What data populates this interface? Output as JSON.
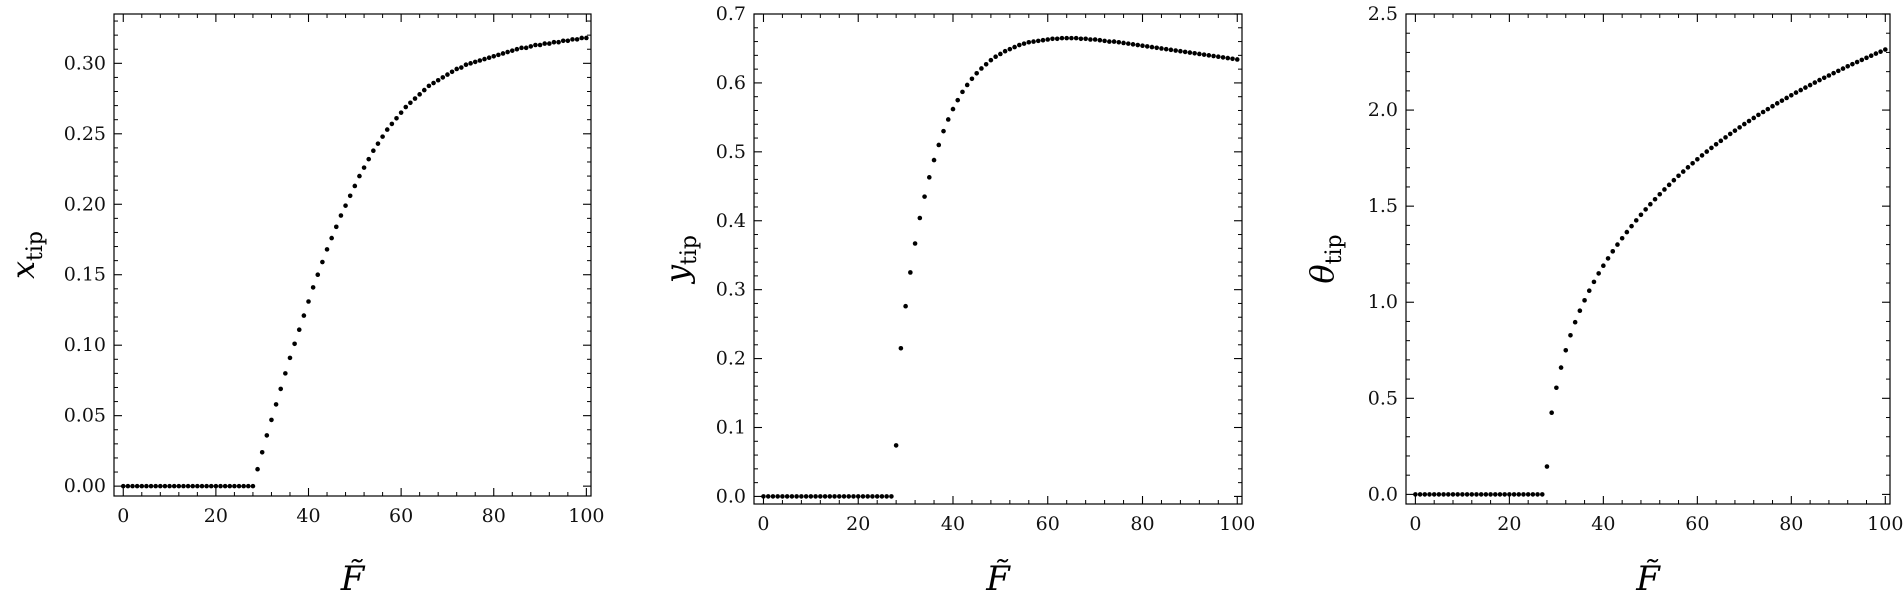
{
  "chart_data": [
    {
      "type": "scatter",
      "xlabel": "F̃",
      "ylabel": "x",
      "ylabel_sub": "tip",
      "xlim": [
        -2,
        101
      ],
      "ylim": [
        -0.007,
        0.335
      ],
      "xticks": [
        0,
        20,
        40,
        60,
        80,
        100
      ],
      "xtick_labels": [
        "0",
        "20",
        "40",
        "60",
        "80",
        "100"
      ],
      "yticks": [
        0,
        0.05,
        0.1,
        0.15,
        0.2,
        0.25,
        0.3
      ],
      "ytick_labels": [
        "0.00",
        "0.05",
        "0.10",
        "0.15",
        "0.20",
        "0.25",
        "0.30"
      ],
      "x": [
        0,
        1,
        2,
        3,
        4,
        5,
        6,
        7,
        8,
        9,
        10,
        11,
        12,
        13,
        14,
        15,
        16,
        17,
        18,
        19,
        20,
        21,
        22,
        23,
        24,
        25,
        26,
        27,
        28,
        29,
        30,
        31,
        32,
        33,
        34,
        35,
        36,
        37,
        38,
        39,
        40,
        41,
        42,
        43,
        44,
        45,
        46,
        47,
        48,
        49,
        50,
        51,
        52,
        53,
        54,
        55,
        56,
        57,
        58,
        59,
        60,
        61,
        62,
        63,
        64,
        65,
        66,
        67,
        68,
        69,
        70,
        71,
        72,
        73,
        74,
        75,
        76,
        77,
        78,
        79,
        80,
        81,
        82,
        83,
        84,
        85,
        86,
        87,
        88,
        89,
        90,
        91,
        92,
        93,
        94,
        95,
        96,
        97,
        98,
        99,
        100
      ],
      "y": [
        0,
        0,
        0,
        0,
        0,
        0,
        0,
        0,
        0,
        0,
        0,
        0,
        0,
        0,
        0,
        0,
        0,
        0,
        0,
        0,
        0,
        0,
        0,
        0,
        0,
        0,
        0,
        0,
        0,
        0.012,
        0.024,
        0.036,
        0.047,
        0.058,
        0.069,
        0.08,
        0.091,
        0.101,
        0.111,
        0.121,
        0.131,
        0.141,
        0.15,
        0.159,
        0.168,
        0.176,
        0.184,
        0.192,
        0.199,
        0.206,
        0.213,
        0.22,
        0.226,
        0.232,
        0.238,
        0.243,
        0.248,
        0.253,
        0.257,
        0.261,
        0.265,
        0.269,
        0.272,
        0.275,
        0.278,
        0.281,
        0.284,
        0.286,
        0.288,
        0.29,
        0.292,
        0.294,
        0.296,
        0.297,
        0.299,
        0.3,
        0.301,
        0.302,
        0.303,
        0.304,
        0.305,
        0.306,
        0.307,
        0.308,
        0.309,
        0.31,
        0.311,
        0.311,
        0.312,
        0.313,
        0.313,
        0.314,
        0.314,
        0.315,
        0.315,
        0.316,
        0.316,
        0.317,
        0.317,
        0.318,
        0.318
      ]
    },
    {
      "type": "scatter",
      "xlabel": "F̃",
      "ylabel": "y",
      "ylabel_sub": "tip",
      "xlim": [
        -2,
        101
      ],
      "ylim": [
        -0.011,
        0.7
      ],
      "xticks": [
        0,
        20,
        40,
        60,
        80,
        100
      ],
      "xtick_labels": [
        "0",
        "20",
        "40",
        "60",
        "80",
        "100"
      ],
      "yticks": [
        0,
        0.1,
        0.2,
        0.3,
        0.4,
        0.5,
        0.6,
        0.7
      ],
      "ytick_labels": [
        "0.0",
        "0.1",
        "0.2",
        "0.3",
        "0.4",
        "0.5",
        "0.6",
        "0.7"
      ],
      "x": [
        0,
        1,
        2,
        3,
        4,
        5,
        6,
        7,
        8,
        9,
        10,
        11,
        12,
        13,
        14,
        15,
        16,
        17,
        18,
        19,
        20,
        21,
        22,
        23,
        24,
        25,
        26,
        27,
        28,
        29,
        30,
        31,
        32,
        33,
        34,
        35,
        36,
        37,
        38,
        39,
        40,
        41,
        42,
        43,
        44,
        45,
        46,
        47,
        48,
        49,
        50,
        51,
        52,
        53,
        54,
        55,
        56,
        57,
        58,
        59,
        60,
        61,
        62,
        63,
        64,
        65,
        66,
        67,
        68,
        69,
        70,
        71,
        72,
        73,
        74,
        75,
        76,
        77,
        78,
        79,
        80,
        81,
        82,
        83,
        84,
        85,
        86,
        87,
        88,
        89,
        90,
        91,
        92,
        93,
        94,
        95,
        96,
        97,
        98,
        99,
        100
      ],
      "y": [
        0,
        0,
        0,
        0,
        0,
        0,
        0,
        0,
        0,
        0,
        0,
        0,
        0,
        0,
        0,
        0,
        0,
        0,
        0,
        0,
        0,
        0,
        0,
        0,
        0,
        0,
        0,
        0,
        0.074,
        0.215,
        0.276,
        0.325,
        0.367,
        0.404,
        0.435,
        0.463,
        0.488,
        0.51,
        0.53,
        0.547,
        0.562,
        0.575,
        0.587,
        0.597,
        0.606,
        0.614,
        0.621,
        0.627,
        0.633,
        0.638,
        0.642,
        0.646,
        0.649,
        0.652,
        0.655,
        0.657,
        0.659,
        0.66,
        0.661,
        0.662,
        0.663,
        0.664,
        0.664,
        0.665,
        0.665,
        0.665,
        0.665,
        0.664,
        0.664,
        0.663,
        0.663,
        0.662,
        0.661,
        0.66,
        0.66,
        0.659,
        0.658,
        0.657,
        0.656,
        0.655,
        0.654,
        0.653,
        0.652,
        0.651,
        0.65,
        0.649,
        0.648,
        0.647,
        0.646,
        0.645,
        0.644,
        0.643,
        0.642,
        0.641,
        0.64,
        0.639,
        0.638,
        0.637,
        0.636,
        0.635,
        0.634
      ]
    },
    {
      "type": "scatter",
      "xlabel": "F̃",
      "ylabel": "θ",
      "ylabel_sub": "tip",
      "xlim": [
        -2,
        101
      ],
      "ylim": [
        -0.05,
        2.5
      ],
      "xticks": [
        0,
        20,
        40,
        60,
        80,
        100
      ],
      "xtick_labels": [
        "0",
        "20",
        "40",
        "60",
        "80",
        "100"
      ],
      "yticks": [
        0,
        0.5,
        1.0,
        1.5,
        2.0,
        2.5
      ],
      "ytick_labels": [
        "0.0",
        "0.5",
        "1.0",
        "1.5",
        "2.0",
        "2.5"
      ],
      "x": [
        0,
        1,
        2,
        3,
        4,
        5,
        6,
        7,
        8,
        9,
        10,
        11,
        12,
        13,
        14,
        15,
        16,
        17,
        18,
        19,
        20,
        21,
        22,
        23,
        24,
        25,
        26,
        27,
        28,
        29,
        30,
        31,
        32,
        33,
        34,
        35,
        36,
        37,
        38,
        39,
        40,
        41,
        42,
        43,
        44,
        45,
        46,
        47,
        48,
        49,
        50,
        51,
        52,
        53,
        54,
        55,
        56,
        57,
        58,
        59,
        60,
        61,
        62,
        63,
        64,
        65,
        66,
        67,
        68,
        69,
        70,
        71,
        72,
        73,
        74,
        75,
        76,
        77,
        78,
        79,
        80,
        81,
        82,
        83,
        84,
        85,
        86,
        87,
        88,
        89,
        90,
        91,
        92,
        93,
        94,
        95,
        96,
        97,
        98,
        99,
        100
      ],
      "y": [
        0,
        0,
        0,
        0,
        0,
        0,
        0,
        0,
        0,
        0,
        0,
        0,
        0,
        0,
        0,
        0,
        0,
        0,
        0,
        0,
        0,
        0,
        0,
        0,
        0,
        0,
        0,
        0,
        0.145,
        0.425,
        0.555,
        0.66,
        0.75,
        0.828,
        0.896,
        0.956,
        1.01,
        1.06,
        1.106,
        1.15,
        1.19,
        1.228,
        1.265,
        1.3,
        1.333,
        1.365,
        1.396,
        1.426,
        1.455,
        1.483,
        1.51,
        1.536,
        1.562,
        1.587,
        1.611,
        1.635,
        1.658,
        1.68,
        1.702,
        1.723,
        1.744,
        1.764,
        1.784,
        1.803,
        1.822,
        1.84,
        1.858,
        1.876,
        1.893,
        1.91,
        1.927,
        1.943,
        1.959,
        1.975,
        1.99,
        2.005,
        2.02,
        2.035,
        2.049,
        2.063,
        2.077,
        2.091,
        2.104,
        2.117,
        2.13,
        2.143,
        2.156,
        2.168,
        2.18,
        2.192,
        2.204,
        2.216,
        2.228,
        2.239,
        2.25,
        2.261,
        2.272,
        2.283,
        2.294,
        2.304,
        2.315
      ]
    }
  ]
}
